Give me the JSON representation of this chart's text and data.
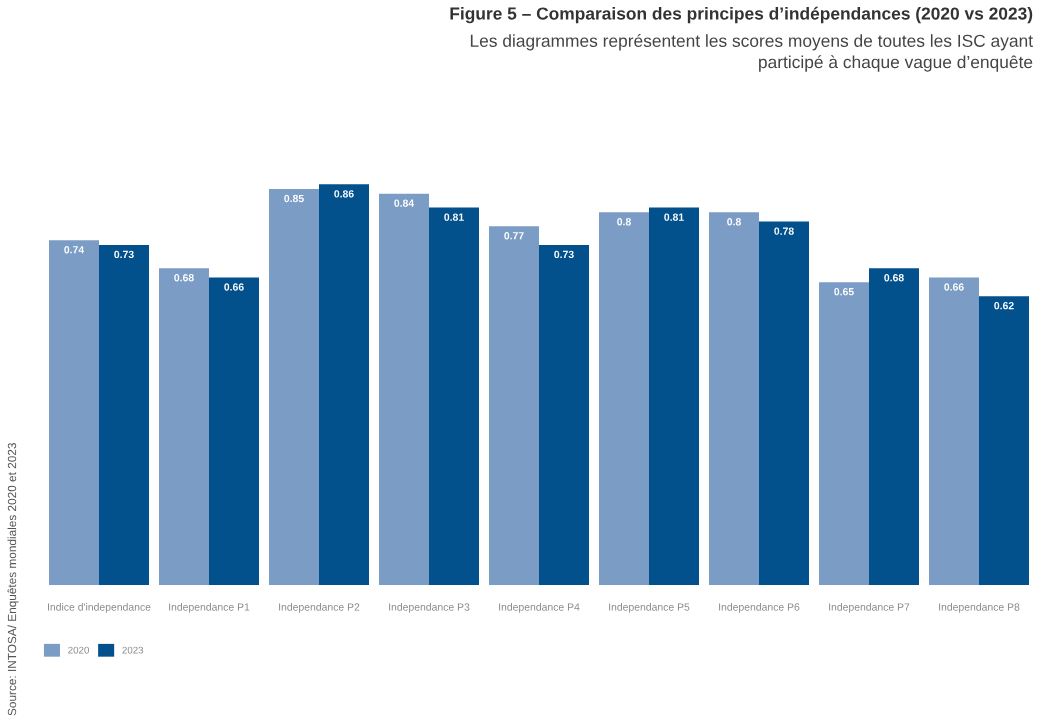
{
  "chart_data": {
    "type": "bar",
    "title": "Figure 5 – Comparaison des principes d’indépendances (2020 vs 2023)",
    "subtitle": "Les diagrammes représentent les scores moyens de toutes les ISC ayant\nparticipé à chaque vague d’enquête",
    "categories": [
      "Indice d'independance",
      "Independance P1",
      "Independance P2",
      "Independance P3",
      "Independance P4",
      "Independance P5",
      "Independance P6",
      "Independance P7",
      "Independance P8"
    ],
    "series": [
      {
        "name": "2020",
        "color": "#7b9cc4",
        "values": [
          0.74,
          0.68,
          0.85,
          0.84,
          0.77,
          0.8,
          0.8,
          0.65,
          0.66
        ]
      },
      {
        "name": "2023",
        "color": "#03518c",
        "values": [
          0.73,
          0.66,
          0.86,
          0.81,
          0.73,
          0.81,
          0.78,
          0.68,
          0.62
        ]
      }
    ],
    "data_labels": true,
    "legend": "bottom left",
    "annotations": [
      "Source: INTOSA/ Enquêtes mondiales 2020 et 2023"
    ]
  }
}
